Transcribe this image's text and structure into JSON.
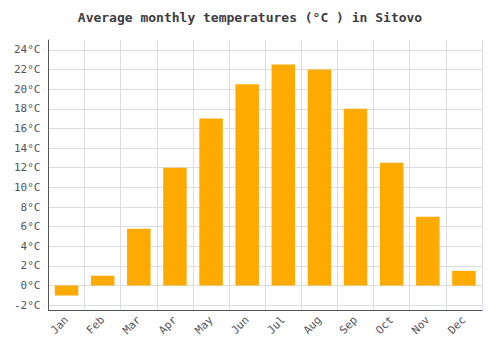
{
  "chart_data": {
    "type": "bar",
    "title": "Average monthly temperatures (°C ) in Sitovo",
    "categories": [
      "Jan",
      "Feb",
      "Mar",
      "Apr",
      "May",
      "Jun",
      "Jul",
      "Aug",
      "Sep",
      "Oct",
      "Nov",
      "Dec"
    ],
    "values": [
      -1.0,
      1.0,
      5.8,
      12.0,
      17.0,
      20.5,
      22.5,
      22.0,
      18.0,
      12.5,
      7.0,
      1.5
    ],
    "color": "#FFAA00",
    "ylim": [
      -2.5,
      25
    ],
    "yticks": [
      {
        "value": -2,
        "label": "-2°C"
      },
      {
        "value": 0,
        "label": "0°C"
      },
      {
        "value": 2,
        "label": "2°C"
      },
      {
        "value": 4,
        "label": "4°C"
      },
      {
        "value": 6,
        "label": "6°C"
      },
      {
        "value": 8,
        "label": "8°C"
      },
      {
        "value": 10,
        "label": "10°C"
      },
      {
        "value": 12,
        "label": "12°C"
      },
      {
        "value": 14,
        "label": "14°C"
      },
      {
        "value": 16,
        "label": "16°C"
      },
      {
        "value": 18,
        "label": "18°C"
      },
      {
        "value": 20,
        "label": "20°C"
      },
      {
        "value": 22,
        "label": "22°C"
      },
      {
        "value": 24,
        "label": "24°C"
      }
    ],
    "grid": true
  }
}
